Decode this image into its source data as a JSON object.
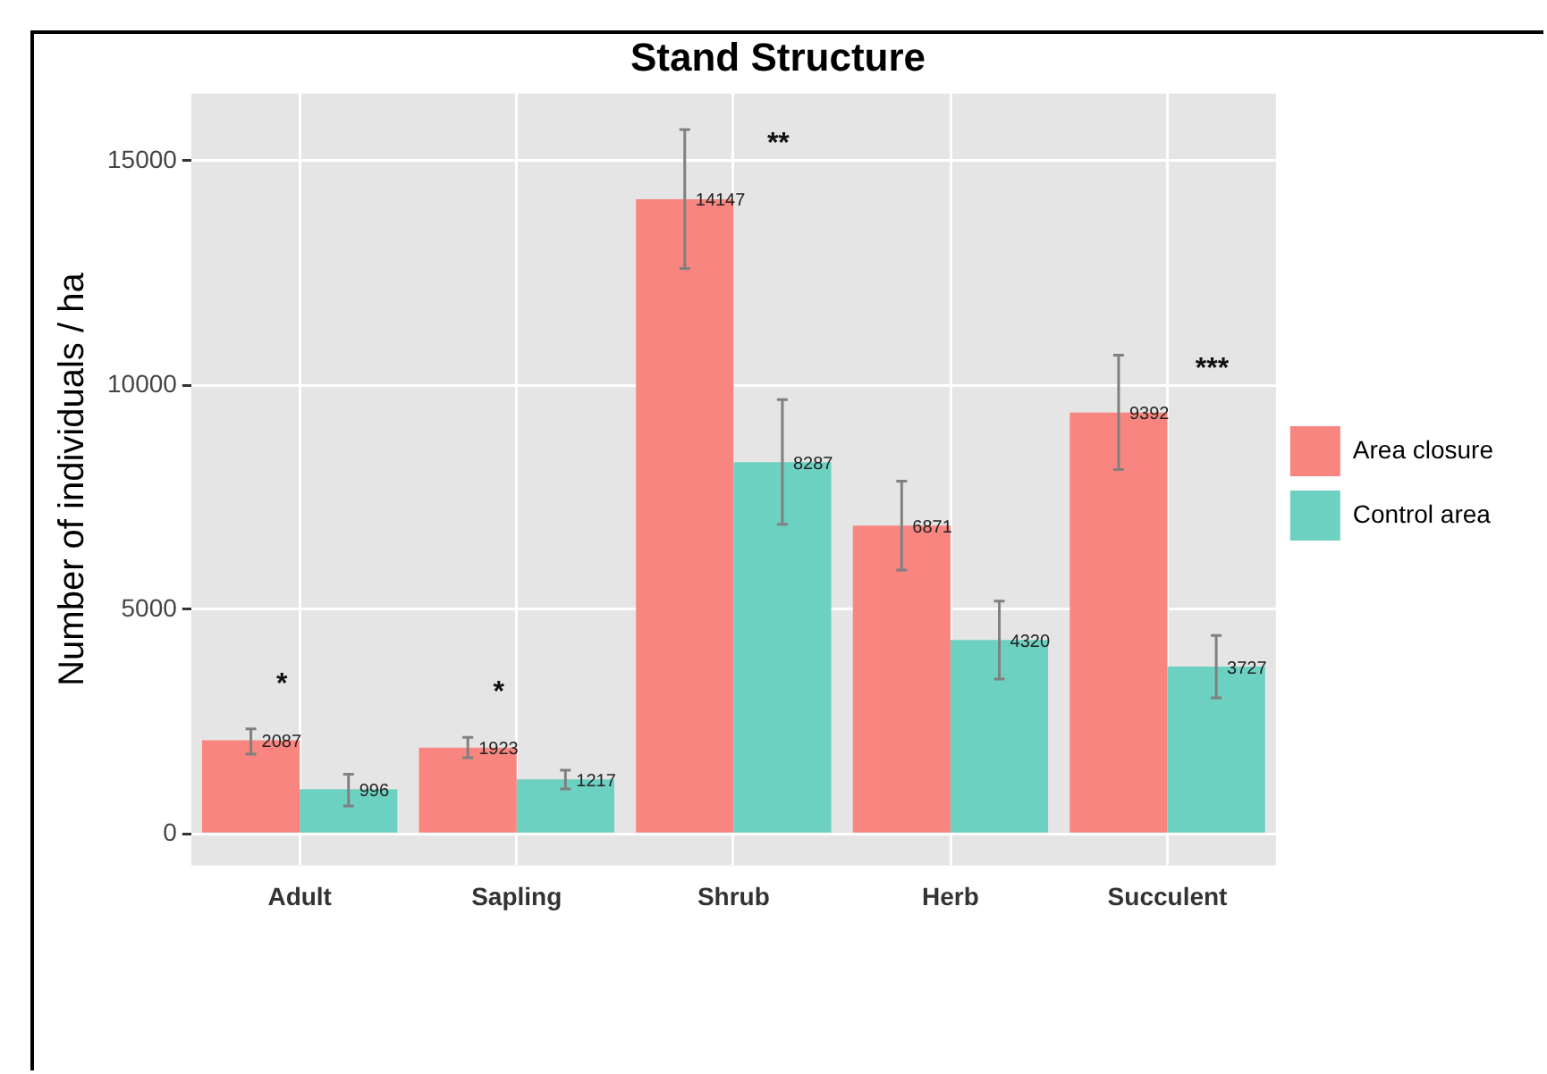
{
  "chart_data": {
    "type": "bar",
    "title": "Stand Structure",
    "ylabel": "Number of individuals / ha",
    "categories": [
      "Adult",
      "Sapling",
      "Shrub",
      "Herb",
      "Succulent"
    ],
    "series": [
      {
        "name": "Area closure",
        "color": "#f8857f",
        "values": [
          2087,
          1923,
          14147,
          6871,
          9392
        ],
        "errors": [
          [
            1780,
            2340
          ],
          [
            1700,
            2150
          ],
          [
            12600,
            15700
          ],
          [
            5880,
            7860
          ],
          [
            8120,
            10670
          ]
        ]
      },
      {
        "name": "Control area",
        "color": "#6dd1c2",
        "values": [
          996,
          1217,
          8287,
          4320,
          3727
        ],
        "errors": [
          [
            620,
            1330
          ],
          [
            1000,
            1420
          ],
          [
            6900,
            9680
          ],
          [
            3450,
            5190
          ],
          [
            3030,
            4420
          ]
        ]
      }
    ],
    "ylim": [
      -700,
      16500
    ],
    "yticks": [
      0,
      5000,
      10000,
      15000
    ],
    "grid": true,
    "legend": "right",
    "data_labels": true,
    "annotations": [
      "*",
      "*",
      "**",
      "***"
    ]
  }
}
